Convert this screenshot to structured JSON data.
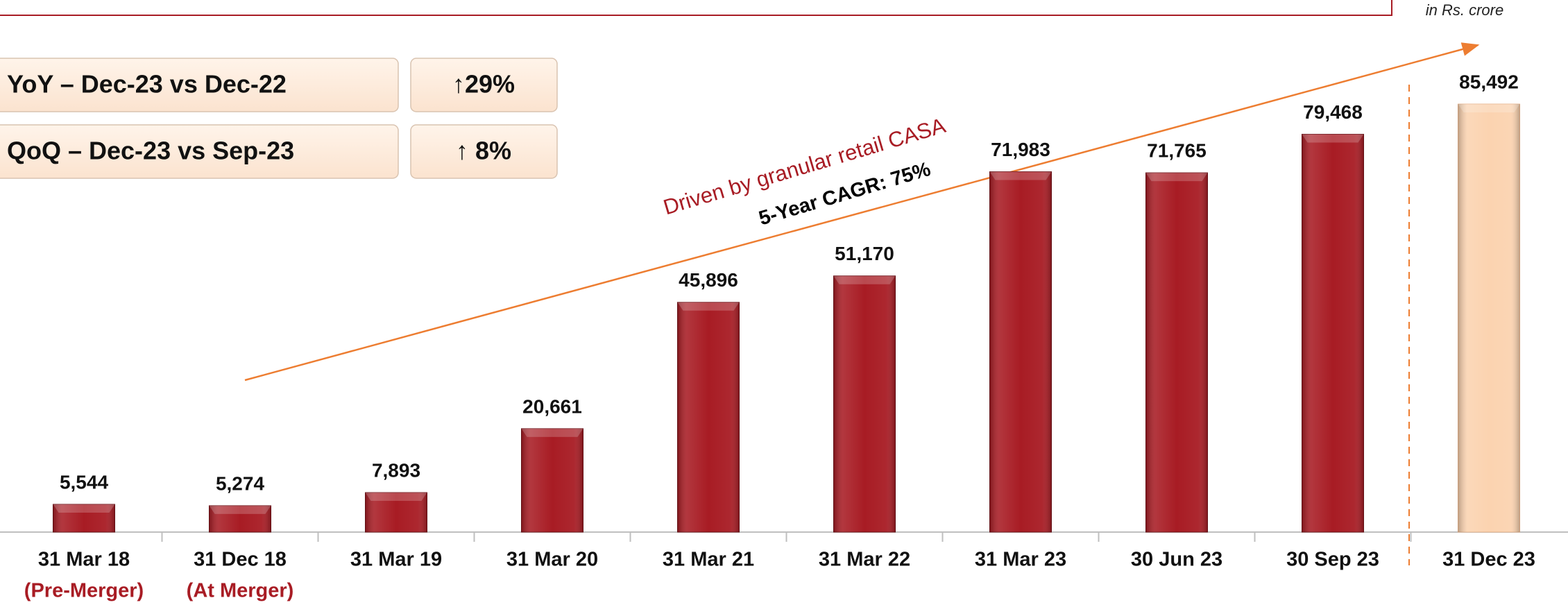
{
  "chart_data": {
    "type": "bar",
    "note": "in Rs. crore",
    "comparisons": [
      {
        "label": "YoY – Dec-23 vs Dec-22",
        "value": "↑29%"
      },
      {
        "label": "QoQ – Dec-23 vs Sep-23",
        "value": "↑ 8%"
      }
    ],
    "annotations": [
      "Driven by granular retail CASA",
      "5-Year CAGR: 75%"
    ],
    "categories": [
      "31 Mar 18",
      "31 Dec 18",
      "31 Mar 19",
      "31 Mar 20",
      "31 Mar 21",
      "31 Mar 22",
      "31 Mar 23",
      "30 Jun 23",
      "30 Sep 23",
      "31 Dec 23"
    ],
    "category_notes": [
      "(Pre-Merger)",
      "(At Merger)",
      null,
      null,
      null,
      null,
      null,
      null,
      null,
      null
    ],
    "values": [
      5544,
      5274,
      7893,
      20661,
      45896,
      51170,
      71983,
      71765,
      79468,
      85492
    ],
    "value_labels": [
      "5,544",
      "5,274",
      "7,893",
      "20,661",
      "45,896",
      "51,170",
      "71,983",
      "71,765",
      "79,468",
      "85,492"
    ],
    "colors": [
      "#a81c24",
      "#a81c24",
      "#a81c24",
      "#a81c24",
      "#a81c24",
      "#a81c24",
      "#a81c24",
      "#a81c24",
      "#a81c24",
      "#fbd3b0"
    ]
  }
}
